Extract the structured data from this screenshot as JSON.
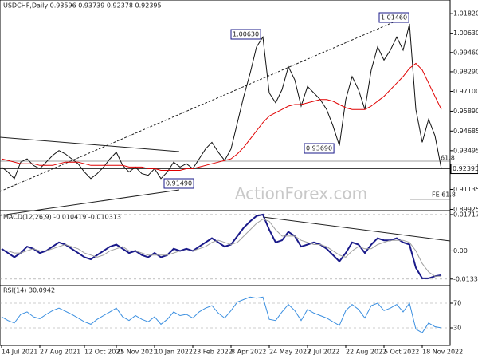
{
  "chart_data": [
    {
      "type": "line",
      "title": "USDCHF,Daily  0.93596 0.93739 0.92378 0.92395",
      "series": [
        {
          "color": "#111111",
          "values": [
            0.925,
            0.922,
            0.918,
            0.928,
            0.93,
            0.926,
            0.924,
            0.928,
            0.932,
            0.935,
            0.933,
            0.93,
            0.927,
            0.922,
            0.918,
            0.921,
            0.925,
            0.93,
            0.934,
            0.926,
            0.922,
            0.925,
            0.921,
            0.92,
            0.924,
            0.918,
            0.922,
            0.928,
            0.925,
            0.927,
            0.924,
            0.93,
            0.936,
            0.94,
            0.934,
            0.929,
            0.936,
            0.952,
            0.968,
            0.982,
            0.998,
            1.004,
            0.97,
            0.964,
            0.972,
            0.986,
            0.978,
            0.962,
            0.974,
            0.97,
            0.966,
            0.96,
            0.95,
            0.938,
            0.966,
            0.98,
            0.972,
            0.96,
            0.984,
            0.998,
            0.99,
            0.996,
            1.004,
            0.996,
            1.012,
            0.96,
            0.94,
            0.954,
            0.944,
            0.924
          ]
        },
        {
          "color": "#e00000",
          "values": [
            0.93,
            0.929,
            0.928,
            0.927,
            0.927,
            0.927,
            0.926,
            0.926,
            0.926,
            0.927,
            0.928,
            0.928,
            0.928,
            0.927,
            0.926,
            0.926,
            0.926,
            0.926,
            0.926,
            0.926,
            0.925,
            0.925,
            0.925,
            0.924,
            0.924,
            0.923,
            0.923,
            0.923,
            0.923,
            0.924,
            0.924,
            0.925,
            0.926,
            0.927,
            0.928,
            0.929,
            0.93,
            0.933,
            0.937,
            0.942,
            0.947,
            0.952,
            0.956,
            0.958,
            0.96,
            0.962,
            0.963,
            0.963,
            0.964,
            0.965,
            0.966,
            0.966,
            0.965,
            0.963,
            0.961,
            0.96,
            0.96,
            0.96,
            0.962,
            0.965,
            0.968,
            0.972,
            0.976,
            0.98,
            0.985,
            0.988,
            0.984,
            0.976,
            0.968,
            0.96
          ]
        }
      ],
      "ylim": [
        0.899,
        1.0265
      ],
      "yticks": [
        {
          "value": 1.0182,
          "label": "1.01820"
        },
        {
          "value": 1.0063,
          "label": "1.00630"
        },
        {
          "value": 0.9946,
          "label": "0.99460"
        },
        {
          "value": 0.9829,
          "label": "0.98290"
        },
        {
          "value": 0.971,
          "label": "0.97100"
        },
        {
          "value": 0.9589,
          "label": "0.95890"
        },
        {
          "value": 0.94685,
          "label": "0.94685"
        },
        {
          "value": 0.93495,
          "label": "0.93495"
        },
        {
          "value": 0.91135,
          "label": "0.91135"
        },
        {
          "value": 0.89925,
          "label": "0.89925"
        }
      ],
      "last": {
        "value": 0.92395,
        "label": "0.92395"
      },
      "annotations": [
        "1.00630",
        "1.01460",
        "0.93690",
        "0.91490",
        "61.8",
        "FE 61.8"
      ],
      "watermark": "ActionForex.com"
    },
    {
      "type": "line",
      "title": "MACD(12,26,9) -0.010419 -0.010313",
      "series": [
        {
          "color": "#1a1a8a",
          "values": [
            0.001,
            -0.001,
            -0.003,
            -0.001,
            0.002,
            0.001,
            -0.001,
            0.0,
            0.002,
            0.004,
            0.003,
            0.001,
            -0.001,
            -0.003,
            -0.004,
            -0.002,
            0.0,
            0.002,
            0.003,
            0.001,
            -0.001,
            0.0,
            -0.002,
            -0.003,
            -0.001,
            -0.003,
            -0.002,
            0.001,
            0.0,
            0.001,
            0.0,
            0.002,
            0.004,
            0.006,
            0.004,
            0.002,
            0.003,
            0.007,
            0.011,
            0.014,
            0.0165,
            0.0172,
            0.01,
            0.004,
            0.005,
            0.009,
            0.007,
            0.002,
            0.003,
            0.004,
            0.003,
            0.001,
            -0.002,
            -0.005,
            -0.001,
            0.004,
            0.003,
            -0.001,
            0.003,
            0.006,
            0.005,
            0.005,
            0.006,
            0.004,
            0.003,
            -0.008,
            -0.013,
            -0.013,
            -0.012,
            -0.0115
          ]
        },
        {
          "color": "#a0a0a0",
          "values": [
            0.0,
            0.0,
            -0.001,
            -0.001,
            0.0,
            0.001,
            0.0,
            0.0,
            0.001,
            0.002,
            0.003,
            0.002,
            0.001,
            -0.001,
            -0.002,
            -0.003,
            -0.002,
            0.0,
            0.001,
            0.002,
            0.0,
            0.0,
            -0.001,
            -0.002,
            -0.002,
            -0.002,
            -0.002,
            -0.001,
            0.0,
            0.0,
            0.0,
            0.001,
            0.002,
            0.004,
            0.005,
            0.004,
            0.003,
            0.004,
            0.007,
            0.01,
            0.013,
            0.015,
            0.014,
            0.01,
            0.007,
            0.007,
            0.007,
            0.005,
            0.004,
            0.003,
            0.003,
            0.002,
            0.0,
            -0.002,
            -0.003,
            0.0,
            0.002,
            0.001,
            0.001,
            0.003,
            0.004,
            0.005,
            0.005,
            0.005,
            0.004,
            0.0,
            -0.006,
            -0.01,
            -0.012,
            -0.012
          ]
        }
      ],
      "ylim": [
        -0.01606,
        0.01904
      ],
      "yticks": [
        0.017176,
        {
          "value": 0,
          "label": "0.00"
        },
        -0.01334
      ]
    },
    {
      "type": "line",
      "title": "RSI(14) 30.0942",
      "series": [
        {
          "color": "#3b8fe0",
          "values": [
            48,
            42,
            38,
            52,
            56,
            48,
            45,
            52,
            58,
            62,
            57,
            52,
            46,
            40,
            36,
            44,
            50,
            56,
            62,
            48,
            42,
            50,
            44,
            40,
            48,
            36,
            44,
            56,
            50,
            52,
            46,
            56,
            62,
            66,
            54,
            46,
            58,
            72,
            76,
            80,
            78,
            80,
            44,
            42,
            56,
            68,
            58,
            42,
            60,
            54,
            50,
            46,
            40,
            34,
            58,
            68,
            60,
            46,
            66,
            70,
            58,
            62,
            68,
            56,
            70,
            28,
            22,
            38,
            32,
            30
          ]
        }
      ],
      "ylim": [
        2.9,
        98.4
      ],
      "yticks": [
        70,
        30
      ],
      "xticks": [
        {
          "value": 0,
          "label": "14 Jul 2021"
        },
        {
          "value": 6,
          "label": "27 Aug 2021"
        },
        {
          "value": 13,
          "label": "12 Oct 2021"
        },
        {
          "value": 18,
          "label": "25 Nov 2021"
        },
        {
          "value": 24,
          "label": "10 Jan 2022"
        },
        {
          "value": 30,
          "label": "23 Feb 2022"
        },
        {
          "value": 36,
          "label": "8 Apr 2022"
        },
        {
          "value": 42,
          "label": "24 May 2022"
        },
        {
          "value": 48,
          "label": "7 Jul 2022"
        },
        {
          "value": 54,
          "label": "22 Aug 2022"
        },
        {
          "value": 60,
          "label": "5 Oct 2022"
        },
        {
          "value": 66,
          "label": "18 Nov 2022"
        }
      ]
    }
  ]
}
